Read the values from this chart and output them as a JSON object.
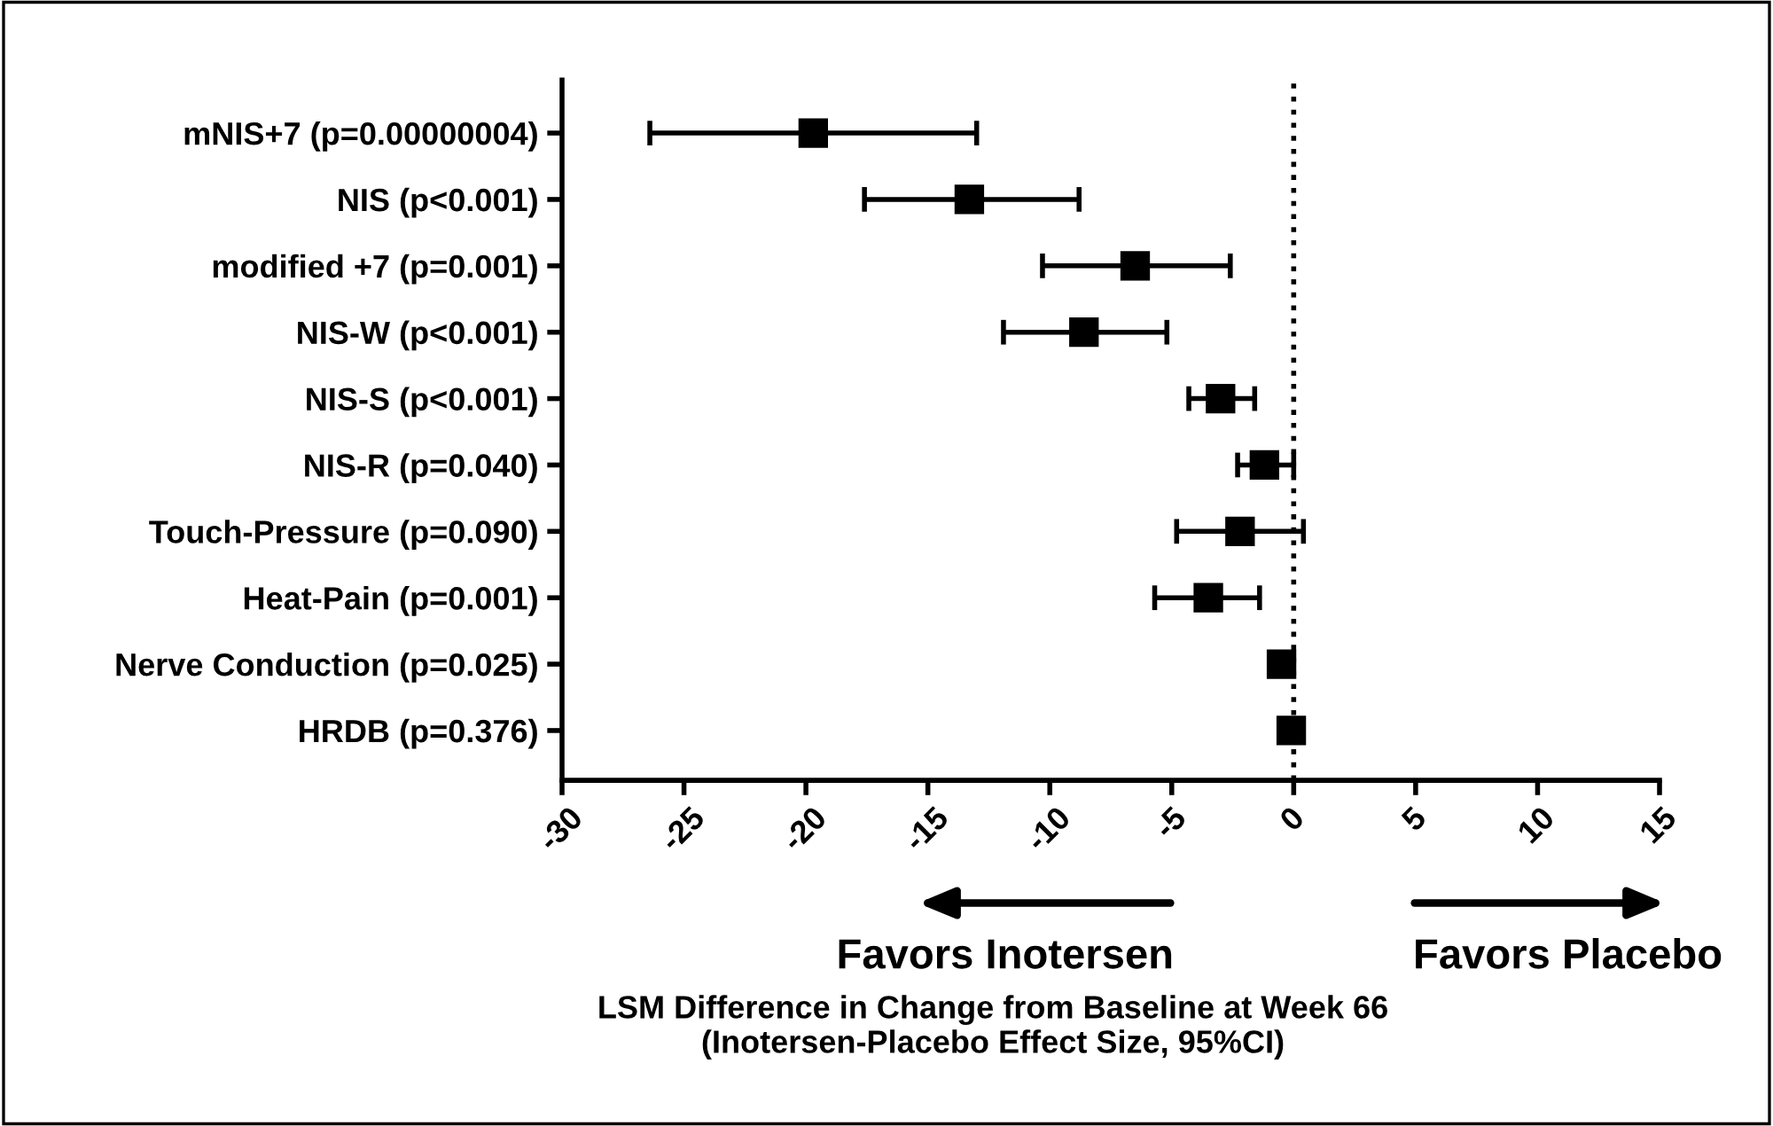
{
  "chart_data": {
    "type": "scatter",
    "orientation": "horizontal",
    "categories": [
      "mNIS+7 (p=0.00000004)",
      "NIS (p<0.001)",
      "modified +7 (p=0.001)",
      "NIS-W (p<0.001)",
      "NIS-S (p<0.001)",
      "NIS-R (p=0.040)",
      "Touch-Pressure (p=0.090)",
      "Heat-Pain (p=0.001)",
      "Nerve Conduction (p=0.025)",
      "HRDB (p=0.376)"
    ],
    "values": [
      -19.7,
      -13.3,
      -6.5,
      -8.6,
      -3.0,
      -1.2,
      -2.2,
      -3.5,
      -0.5,
      -0.1
    ],
    "errors": [
      [
        -26.4,
        -13.0
      ],
      [
        -17.6,
        -8.8
      ],
      [
        -10.3,
        -2.6
      ],
      [
        -11.9,
        -5.2
      ],
      [
        -4.3,
        -1.6
      ],
      [
        -2.3,
        0.0
      ],
      [
        -4.8,
        0.4
      ],
      [
        -5.7,
        -1.4
      ],
      null,
      null
    ],
    "color": "#000000",
    "marker": "square",
    "xlim": [
      -30,
      15
    ],
    "xticks": [
      -30,
      -25,
      -20,
      -15,
      -10,
      -5,
      0,
      5,
      10,
      15
    ],
    "ref_lines": [
      {
        "axis": "x",
        "value": 0,
        "line_style": "dotted",
        "color": "#000000"
      }
    ],
    "annotations": [
      "Favors Inotersen",
      "Favors Placebo",
      "LSM Difference in Change from Baseline at Week 66\n(Inotersen-Placebo Effect Size, 95%CI)"
    ],
    "grid": false
  }
}
